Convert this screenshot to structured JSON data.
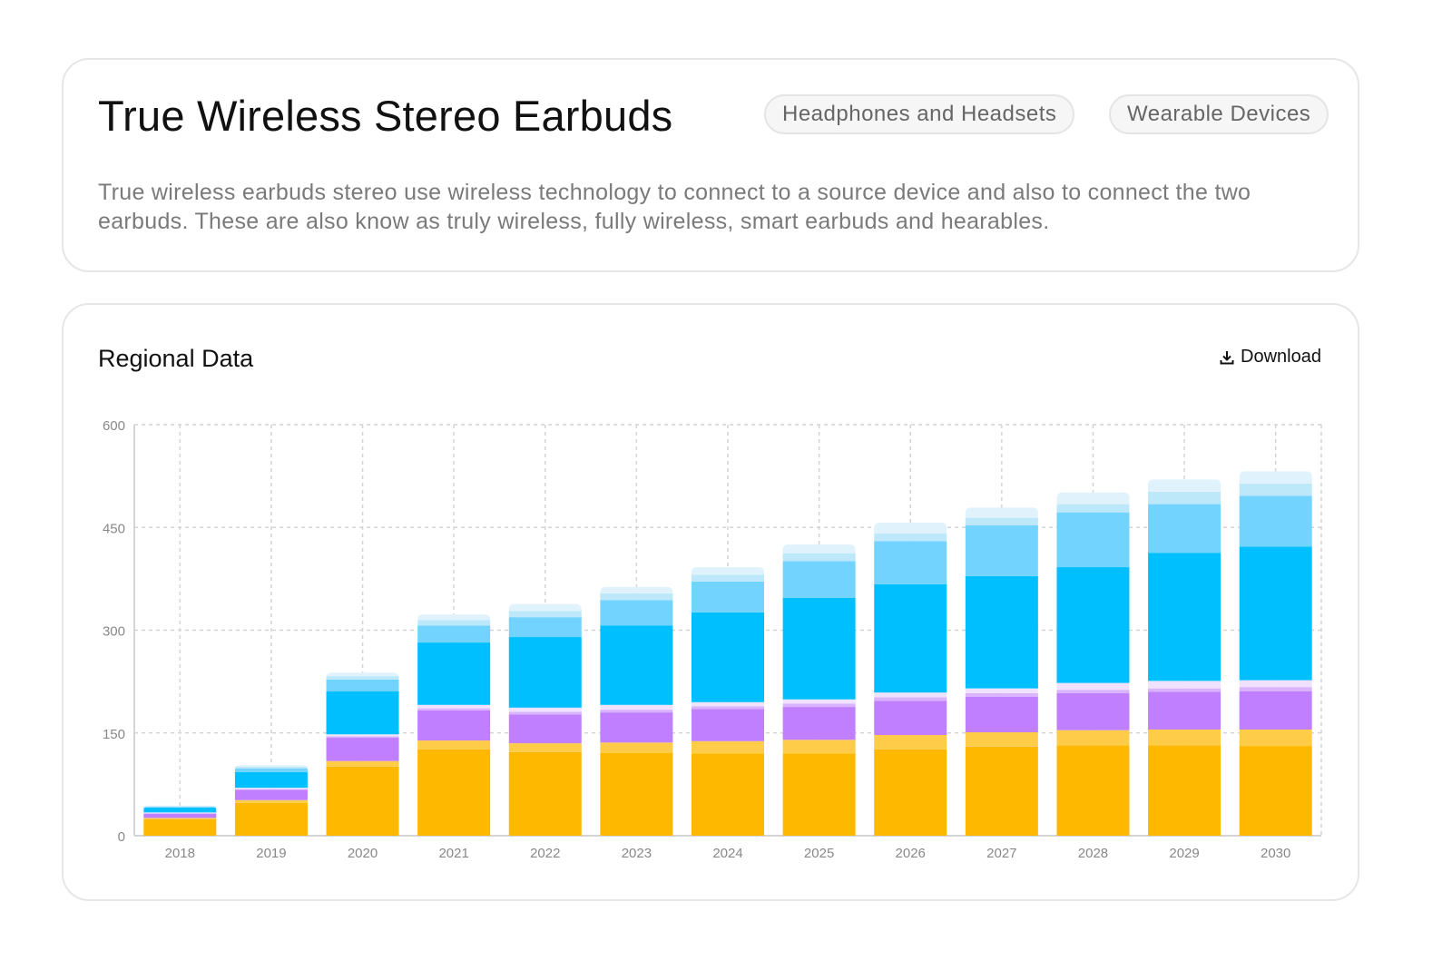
{
  "header": {
    "title": "True Wireless Stereo Earbuds",
    "tags": [
      "Headphones and Headsets",
      "Wearable Devices"
    ],
    "description": "True wireless earbuds stereo use wireless technology to connect to a source device and also to connect the two earbuds. These are also know as truly wireless, fully wireless, smart earbuds and hearables."
  },
  "chart_section": {
    "title": "Regional Data",
    "download_label": "Download",
    "download_icon": "download-icon"
  },
  "chart_data": {
    "type": "bar",
    "stacked": true,
    "categories": [
      "2018",
      "2019",
      "2020",
      "2021",
      "2022",
      "2023",
      "2024",
      "2025",
      "2026",
      "2027",
      "2028",
      "2029",
      "2030"
    ],
    "ylim": [
      0,
      600
    ],
    "yticks": [
      0,
      150,
      300,
      450,
      600
    ],
    "grid": true,
    "legend": "none",
    "series": [
      {
        "color": "#FFB800",
        "values": [
          24,
          48,
          101,
          126,
          122,
          121,
          120,
          120,
          126,
          130,
          132,
          132,
          131
        ]
      },
      {
        "color": "#FFCC4A",
        "values": [
          2,
          4,
          8,
          13,
          13,
          15,
          18,
          20,
          21,
          21,
          22,
          23,
          24
        ]
      },
      {
        "color": "#C07FFF",
        "values": [
          6,
          15,
          34,
          44,
          42,
          44,
          47,
          48,
          50,
          52,
          54,
          55,
          56
        ]
      },
      {
        "color": "#D9B3FF",
        "values": [
          1,
          1,
          2,
          3,
          4,
          4,
          4,
          5,
          5,
          5,
          5,
          5,
          6
        ]
      },
      {
        "color": "#F0E2FF",
        "values": [
          1,
          2,
          3,
          5,
          6,
          7,
          6,
          6,
          7,
          7,
          10,
          11,
          10
        ]
      },
      {
        "color": "#00BFFF",
        "values": [
          7,
          23,
          63,
          91,
          103,
          116,
          131,
          148,
          158,
          164,
          169,
          187,
          195
        ]
      },
      {
        "color": "#73D3FF",
        "values": [
          1,
          5,
          17,
          25,
          29,
          37,
          45,
          54,
          63,
          74,
          80,
          71,
          74
        ]
      },
      {
        "color": "#BDE8FA",
        "values": [
          1,
          3,
          5,
          8,
          9,
          10,
          10,
          11,
          11,
          11,
          12,
          18,
          18
        ]
      },
      {
        "color": "#E0F3FD",
        "values": [
          1,
          2,
          5,
          8,
          10,
          9,
          11,
          13,
          16,
          15,
          17,
          18,
          18
        ]
      }
    ]
  }
}
